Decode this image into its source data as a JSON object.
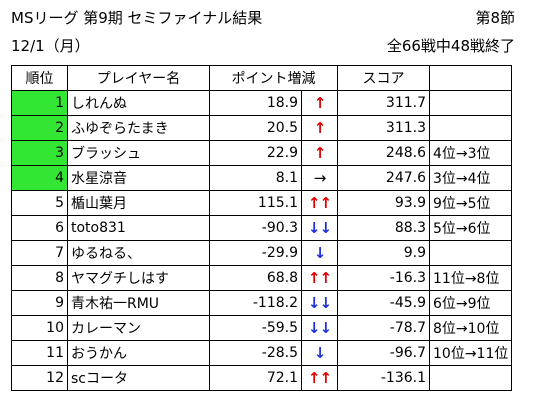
{
  "header": {
    "title": "MSリーグ 第9期 セミファイナル結果",
    "round": "第8節",
    "date": "12/1（月）",
    "progress": "全66戦中48戦終了"
  },
  "columns": {
    "rank": "順位",
    "name": "プレイヤー名",
    "points": "ポイント増減",
    "score": "スコア"
  },
  "highlight_color": "#33e633",
  "rows": [
    {
      "rank": "1",
      "name": "しれんぬ",
      "points": "18.9",
      "arrow": "↑",
      "trend": "up",
      "score": "311.7",
      "change": "",
      "highlight": true
    },
    {
      "rank": "2",
      "name": "ふゆぞらたまき",
      "points": "20.5",
      "arrow": "↑",
      "trend": "up",
      "score": "311.3",
      "change": "",
      "highlight": true
    },
    {
      "rank": "3",
      "name": "ブラッシュ",
      "points": "22.9",
      "arrow": "↑",
      "trend": "up",
      "score": "248.6",
      "change": "4位→3位",
      "highlight": true
    },
    {
      "rank": "4",
      "name": "水星涼音",
      "points": "8.1",
      "arrow": "→",
      "trend": "flat",
      "score": "247.6",
      "change": "3位→4位",
      "highlight": true
    },
    {
      "rank": "5",
      "name": "楯山葉月",
      "points": "115.1",
      "arrow": "↑↑",
      "trend": "up",
      "score": "93.9",
      "change": "9位→5位",
      "highlight": false
    },
    {
      "rank": "6",
      "name": "toto831",
      "points": "-90.3",
      "arrow": "↓↓",
      "trend": "down",
      "score": "88.3",
      "change": "5位→6位",
      "highlight": false
    },
    {
      "rank": "7",
      "name": "ゆるねる、",
      "points": "-29.9",
      "arrow": "↓",
      "trend": "down",
      "score": "9.9",
      "change": "",
      "highlight": false
    },
    {
      "rank": "8",
      "name": "ヤマグチしはす",
      "points": "68.8",
      "arrow": "↑↑",
      "trend": "up",
      "score": "-16.3",
      "change": "11位→8位",
      "highlight": false
    },
    {
      "rank": "9",
      "name": "青木祐一RMU",
      "points": "-118.2",
      "arrow": "↓↓",
      "trend": "down",
      "score": "-45.9",
      "change": "6位→9位",
      "highlight": false
    },
    {
      "rank": "10",
      "name": "カレーマン",
      "points": "-59.5",
      "arrow": "↓↓",
      "trend": "down",
      "score": "-78.7",
      "change": "8位→10位",
      "highlight": false
    },
    {
      "rank": "11",
      "name": "おうかん",
      "points": "-28.5",
      "arrow": "↓",
      "trend": "down",
      "score": "-96.7",
      "change": "10位→11位",
      "highlight": false
    },
    {
      "rank": "12",
      "name": "scコータ",
      "points": "72.1",
      "arrow": "↑↑",
      "trend": "up",
      "score": "-136.1",
      "change": "",
      "highlight": false
    }
  ]
}
